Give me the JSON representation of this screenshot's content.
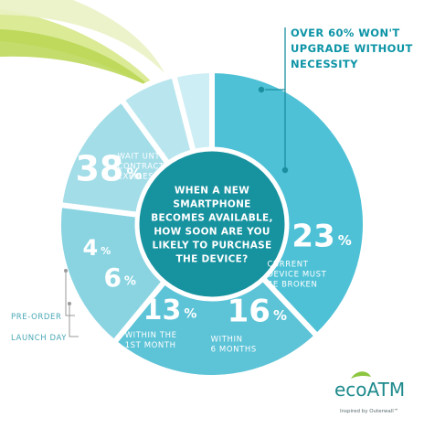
{
  "chart_data": {
    "type": "pie",
    "categories": [
      "Wait until contract expires",
      "Current device must be broken",
      "Within 6 months",
      "Within the 1st month",
      "Pre-order",
      "Launch day"
    ],
    "values": [
      38,
      23,
      16,
      13,
      6,
      4
    ],
    "value_labels": [
      "38",
      "23",
      "16",
      "13",
      "6",
      "4"
    ],
    "percent_sign": "%",
    "segment_labels": [
      "WAIT UNTIL\nCONTRACT\nEXPIRES",
      "CURRENT\nDEVICE MUST\nBE BROKEN",
      "WITHIN\n6 MONTHS",
      "WITHIN THE\n1ST MONTH",
      "",
      ""
    ],
    "center_question": "WHEN A NEW\nSMARTPHONE\nBECOMES AVAILABLE,\nHOW SOON ARE YOU\nLIKELY TO PURCHASE\nTHE DEVICE?",
    "colors": [
      "#4fc1d6",
      "#5dc3d7",
      "#8ad4e2",
      "#a3dde8",
      "#b9e6ee",
      "#cdeef4"
    ],
    "center_color": "#17929f"
  },
  "callout": "OVER 60% WON'T\nUPGRADE WITHOUT\nNECESSITY",
  "side_labels": {
    "preorder": "PRE-ORDER",
    "launch_day": "LAUNCH DAY"
  },
  "logo": {
    "name": "ecoATM",
    "tagline": "Inspired by Outerwall™"
  }
}
